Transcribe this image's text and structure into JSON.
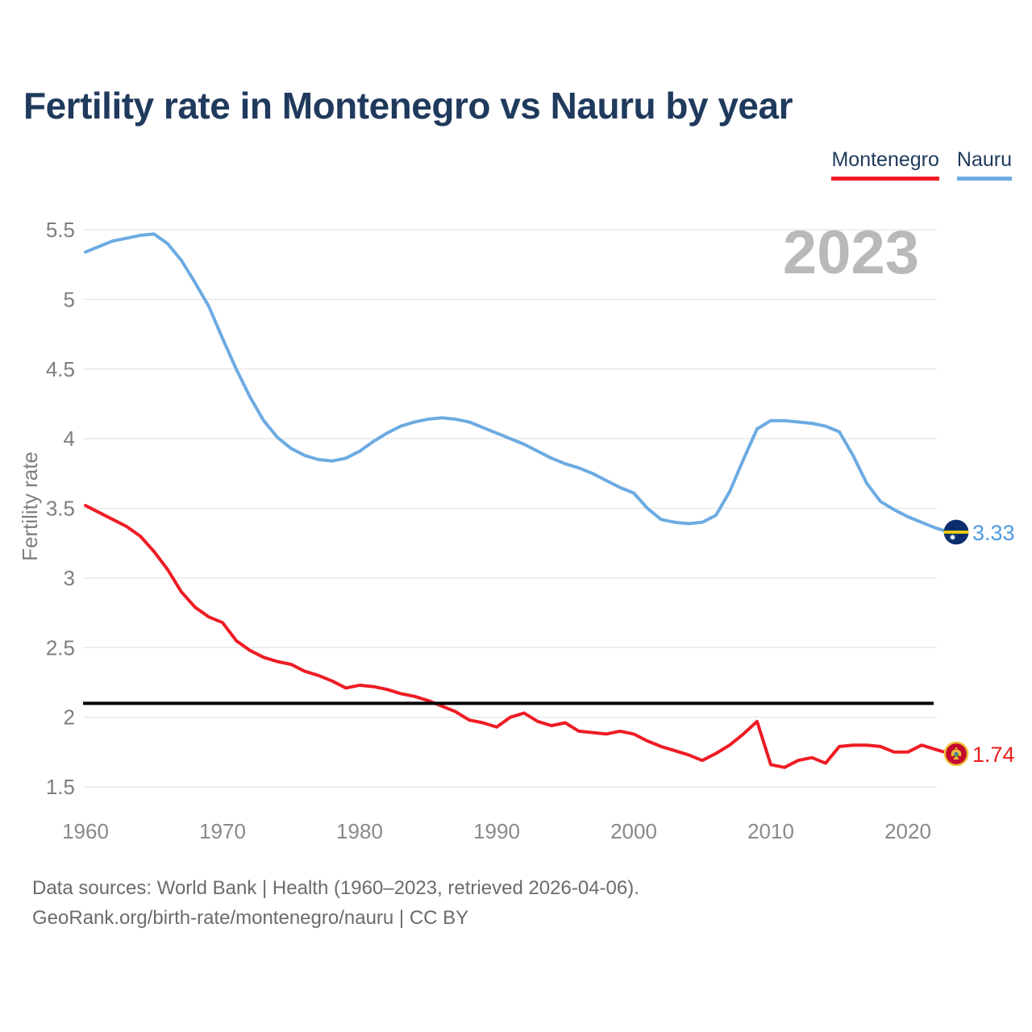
{
  "header": {
    "title": "Fertility rate in Montenegro vs Nauru by year"
  },
  "legend": {
    "items": [
      {
        "label": "Montenegro",
        "color": "#ee1c24"
      },
      {
        "label": "Nauru",
        "color": "#6cabe2"
      }
    ]
  },
  "watermark": {
    "text": "2023"
  },
  "chart_data": {
    "type": "line",
    "title": "Fertility rate in Montenegro vs Nauru by year",
    "xlabel": "",
    "ylabel": "Fertility rate",
    "x_range": [
      1960,
      2023
    ],
    "ylim": [
      1.5,
      5.5
    ],
    "grid": true,
    "legend_position": "top-right",
    "xticks": [
      1960,
      1970,
      1980,
      1990,
      2000,
      2010,
      2020
    ],
    "yticks": [
      5.5,
      5,
      4.5,
      4,
      3.5,
      3,
      2.5,
      2,
      1.5
    ],
    "reference_line": {
      "value": 2.1,
      "color": "#000000"
    },
    "x": [
      1960,
      1961,
      1962,
      1963,
      1964,
      1965,
      1966,
      1967,
      1968,
      1969,
      1970,
      1971,
      1972,
      1973,
      1974,
      1975,
      1976,
      1977,
      1978,
      1979,
      1980,
      1981,
      1982,
      1983,
      1984,
      1985,
      1986,
      1987,
      1988,
      1989,
      1990,
      1991,
      1992,
      1993,
      1994,
      1995,
      1996,
      1997,
      1998,
      1999,
      2000,
      2001,
      2002,
      2003,
      2004,
      2005,
      2006,
      2007,
      2008,
      2009,
      2010,
      2011,
      2012,
      2013,
      2014,
      2015,
      2016,
      2017,
      2018,
      2019,
      2020,
      2021,
      2022,
      2023
    ],
    "series": [
      {
        "name": "Montenegro",
        "color": "#ee1c24",
        "end_label": "1.74",
        "values": [
          3.52,
          3.47,
          3.42,
          3.37,
          3.3,
          3.19,
          3.06,
          2.9,
          2.79,
          2.72,
          2.68,
          2.55,
          2.48,
          2.43,
          2.4,
          2.38,
          2.33,
          2.3,
          2.26,
          2.21,
          2.23,
          2.22,
          2.2,
          2.17,
          2.15,
          2.12,
          2.08,
          2.04,
          1.98,
          1.96,
          1.93,
          2.0,
          2.03,
          1.97,
          1.94,
          1.96,
          1.9,
          1.89,
          1.88,
          1.9,
          1.88,
          1.83,
          1.79,
          1.76,
          1.73,
          1.69,
          1.74,
          1.8,
          1.88,
          1.97,
          1.66,
          1.64,
          1.69,
          1.71,
          1.67,
          1.79,
          1.8,
          1.8,
          1.79,
          1.75,
          1.75,
          1.8,
          1.77,
          1.74
        ]
      },
      {
        "name": "Nauru",
        "color": "#6cabe2",
        "end_label": "3.33",
        "values": [
          5.34,
          5.38,
          5.42,
          5.44,
          5.46,
          5.47,
          5.4,
          5.28,
          5.12,
          4.95,
          4.72,
          4.5,
          4.3,
          4.13,
          4.01,
          3.93,
          3.88,
          3.85,
          3.84,
          3.86,
          3.91,
          3.98,
          4.04,
          4.09,
          4.12,
          4.14,
          4.15,
          4.14,
          4.12,
          4.08,
          4.04,
          4.0,
          3.96,
          3.91,
          3.86,
          3.82,
          3.79,
          3.75,
          3.7,
          3.65,
          3.61,
          3.5,
          3.42,
          3.4,
          3.39,
          3.4,
          3.45,
          3.62,
          3.85,
          4.07,
          4.13,
          4.13,
          4.12,
          4.11,
          4.09,
          4.05,
          3.88,
          3.68,
          3.55,
          3.49,
          3.44,
          3.4,
          3.36,
          3.33
        ]
      }
    ]
  },
  "footer": {
    "line1": "Data sources: World Bank | Health (1960–2023, retrieved 2026-04-06).",
    "line2": "GeoRank.org/birth-rate/montenegro/nauru | CC BY"
  }
}
